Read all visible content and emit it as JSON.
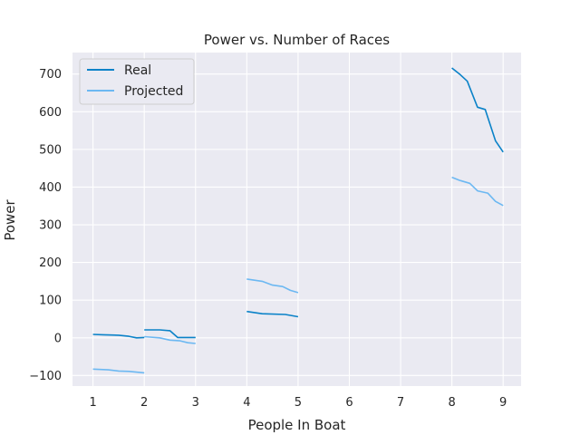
{
  "chart_data": {
    "type": "line",
    "title": "Power vs. Number of Races",
    "xlabel": "People In Boat",
    "ylabel": "Power",
    "xlim": [
      0.6,
      9.35
    ],
    "ylim": [
      -128,
      757
    ],
    "x_ticks": [
      1,
      2,
      3,
      4,
      5,
      6,
      7,
      8,
      9
    ],
    "y_ticks": [
      -100,
      0,
      100,
      200,
      300,
      400,
      500,
      600,
      700
    ],
    "y_tick_labels": [
      "−100",
      "0",
      "100",
      "200",
      "300",
      "400",
      "500",
      "600",
      "700"
    ],
    "grid": true,
    "legend_position": "top-left",
    "series": [
      {
        "name": "Real",
        "color": "#0a82c8",
        "segments": [
          [
            [
              1.0,
              9
            ],
            [
              1.2,
              8
            ],
            [
              1.5,
              7
            ],
            [
              1.7,
              4
            ],
            [
              1.85,
              0
            ],
            [
              2.0,
              1
            ]
          ],
          [
            [
              2.0,
              21
            ],
            [
              2.3,
              21
            ],
            [
              2.5,
              19
            ],
            [
              2.65,
              1
            ],
            [
              3.0,
              1
            ]
          ],
          [
            [
              4.0,
              70
            ],
            [
              4.3,
              64
            ],
            [
              4.75,
              62
            ],
            [
              5.0,
              56
            ]
          ],
          [
            [
              8.0,
              716
            ],
            [
              8.15,
              700
            ],
            [
              8.3,
              681
            ],
            [
              8.5,
              612
            ],
            [
              8.65,
              606
            ],
            [
              8.85,
              523
            ],
            [
              9.0,
              493
            ]
          ]
        ]
      },
      {
        "name": "Projected",
        "color": "#6cb8f2",
        "segments": [
          [
            [
              1.0,
              -83
            ],
            [
              1.3,
              -85
            ],
            [
              1.5,
              -88
            ],
            [
              1.7,
              -89
            ],
            [
              2.0,
              -93
            ]
          ],
          [
            [
              2.0,
              3
            ],
            [
              2.3,
              0
            ],
            [
              2.5,
              -6
            ],
            [
              2.7,
              -8
            ],
            [
              2.85,
              -13
            ],
            [
              3.0,
              -15
            ]
          ],
          [
            [
              4.0,
              156
            ],
            [
              4.3,
              150
            ],
            [
              4.5,
              140
            ],
            [
              4.7,
              136
            ],
            [
              4.85,
              126
            ],
            [
              5.0,
              120
            ]
          ],
          [
            [
              8.0,
              426
            ],
            [
              8.15,
              418
            ],
            [
              8.35,
              410
            ],
            [
              8.5,
              390
            ],
            [
              8.7,
              384
            ],
            [
              8.85,
              362
            ],
            [
              9.0,
              351
            ]
          ]
        ]
      }
    ]
  }
}
